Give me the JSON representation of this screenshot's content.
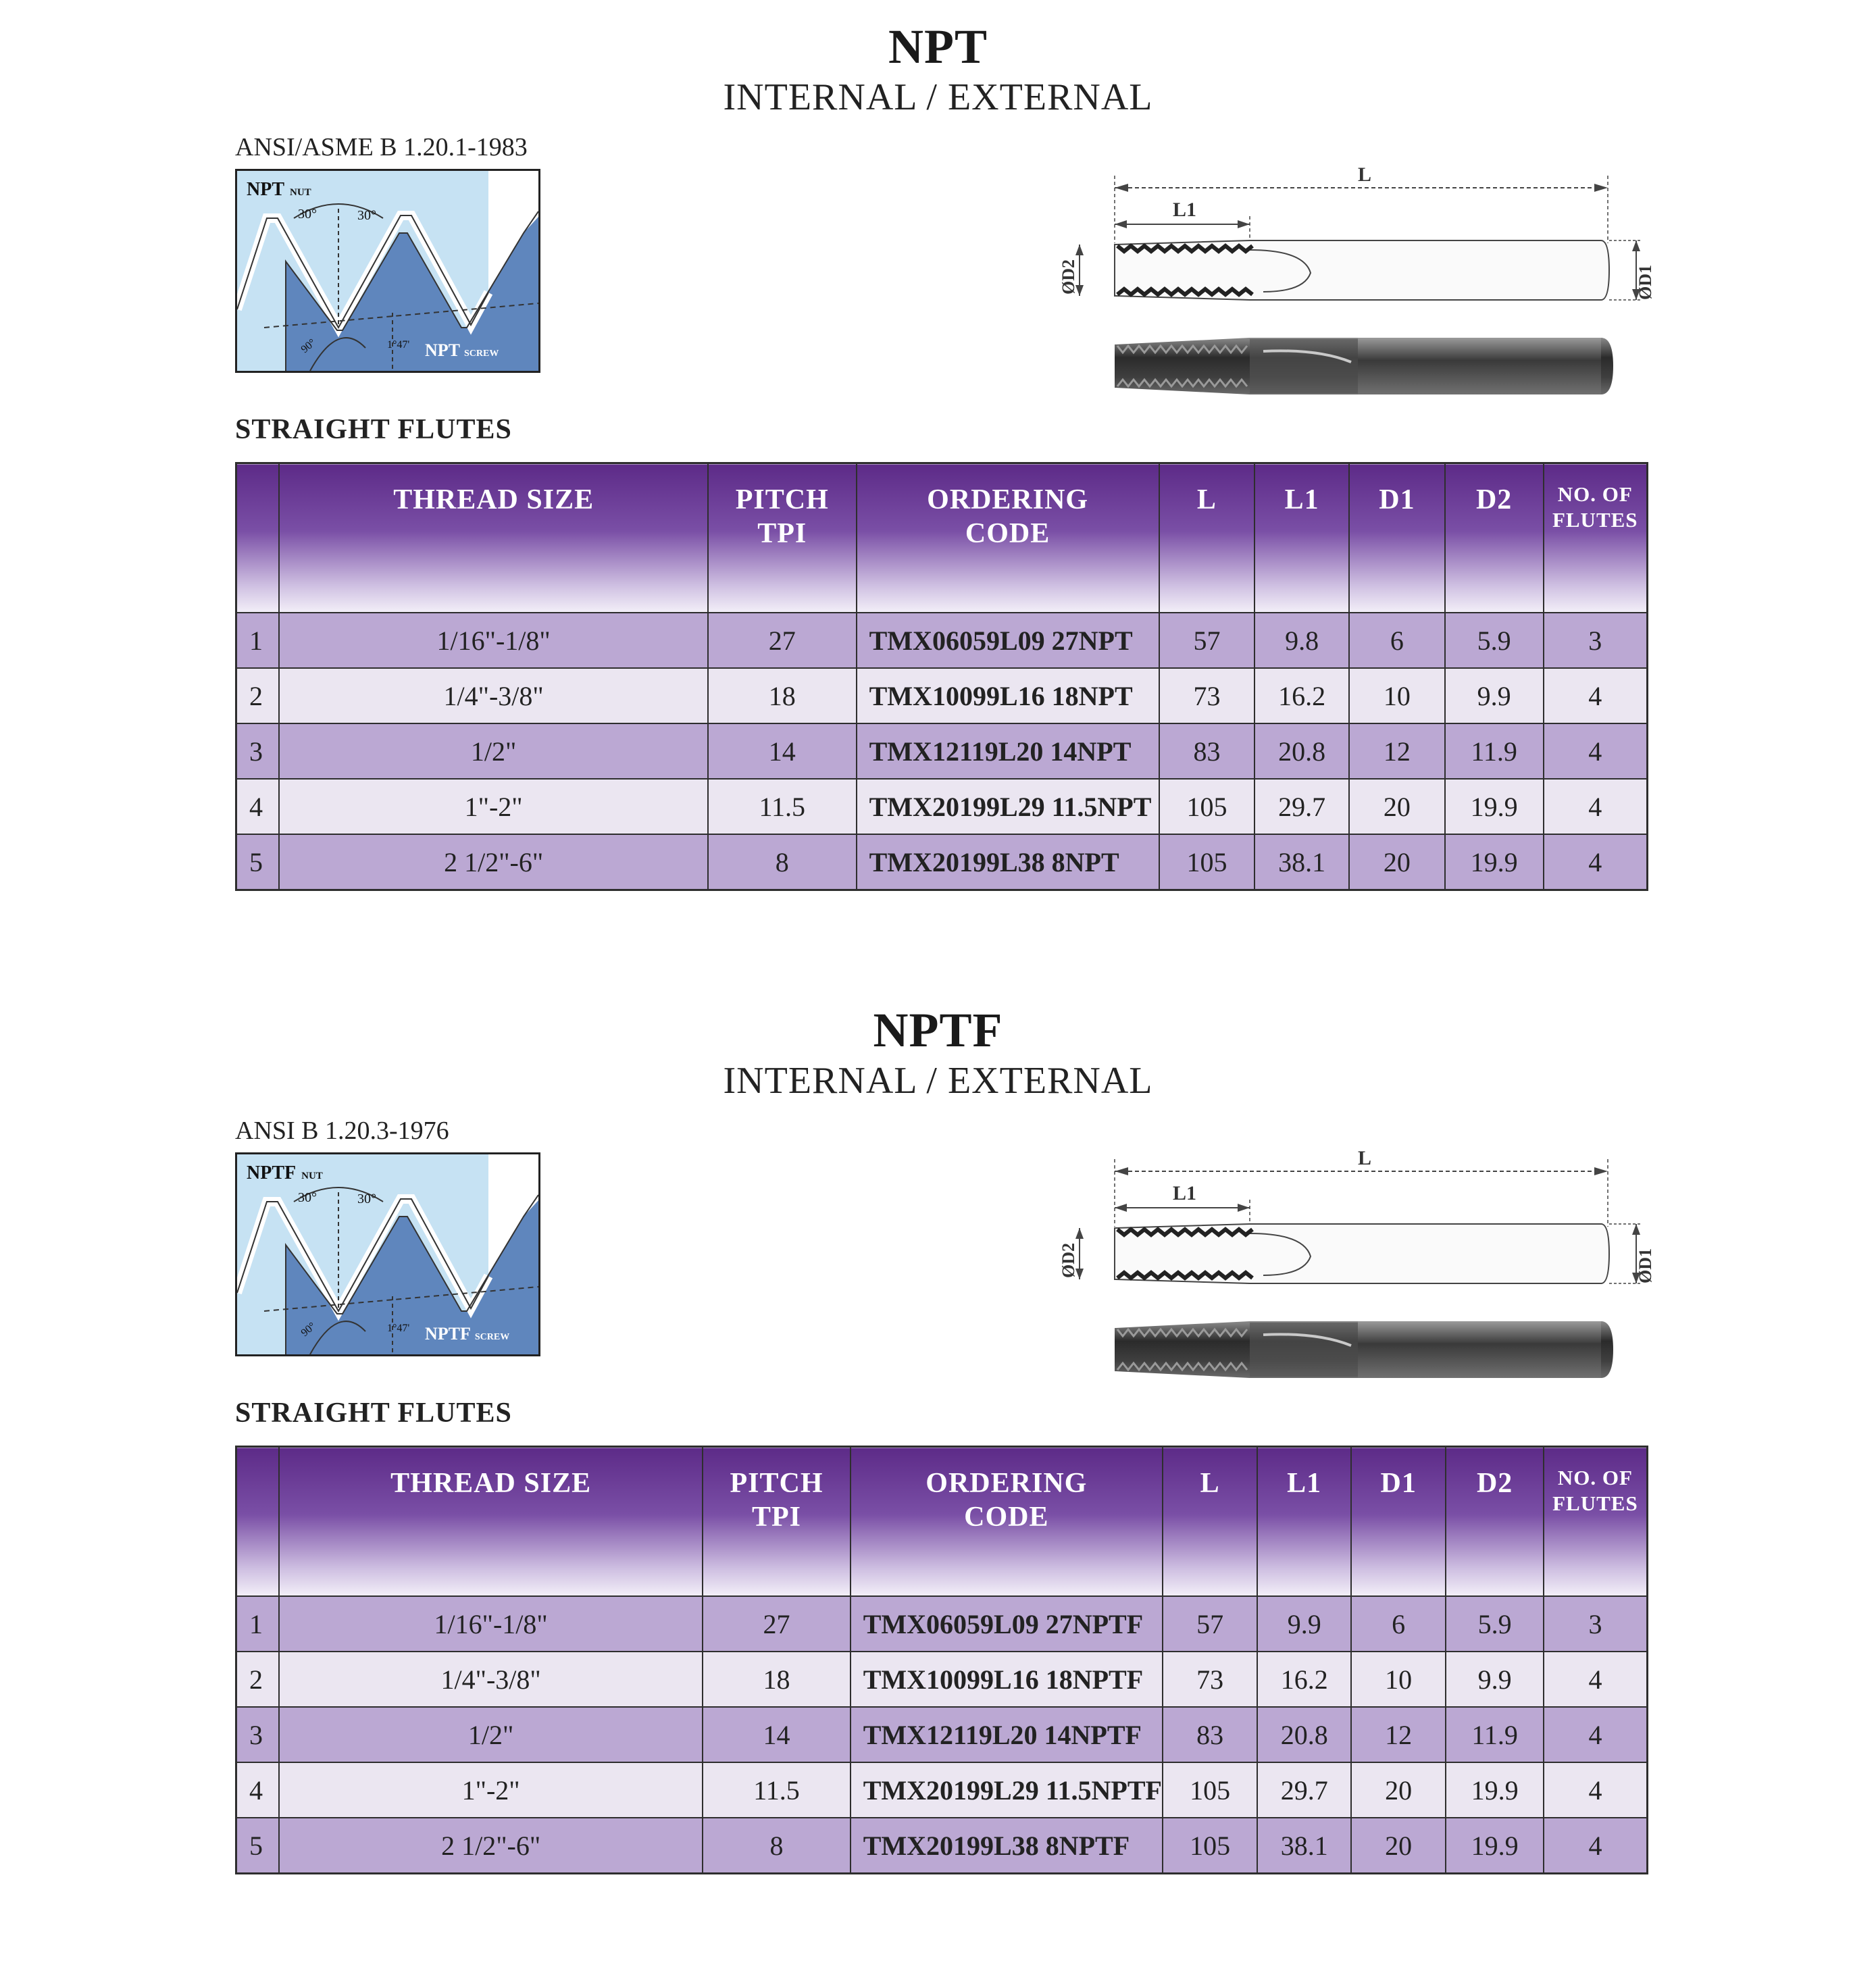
{
  "sections": [
    {
      "title": "NPT",
      "subtitle": "INTERNAL / EXTERNAL",
      "standard": "ANSI/ASME B 1.20.1-1983",
      "profile": {
        "nut_label": "NPT",
        "nut_sub": "NUT",
        "screw_label": "NPT",
        "screw_sub": "SCREW",
        "angle_left": "30°",
        "angle_right": "30°",
        "angle_90": "90°",
        "taper": "1°47'"
      },
      "dims": {
        "L": "L",
        "L1": "L1",
        "D1": "ØD1",
        "D2": "ØD2"
      },
      "flutes_heading": "STRAIGHT FLUTES",
      "headers": {
        "thread_size": "THREAD SIZE",
        "pitch_1": "PITCH",
        "pitch_2": "TPI",
        "ordering_1": "ORDERING",
        "ordering_2": "CODE",
        "L": "L",
        "L1": "L1",
        "D1": "D1",
        "D2": "D2",
        "flutes_1": "NO. OF",
        "flutes_2": "FLUTES"
      },
      "rows": [
        {
          "n": "1",
          "size": "1/16\"-1/8\"",
          "tpi": "27",
          "code": "TMX06059L09 27NPT",
          "L": "57",
          "L1": "9.8",
          "D1": "6",
          "D2": "5.9",
          "fl": "3"
        },
        {
          "n": "2",
          "size": "1/4\"-3/8\"",
          "tpi": "18",
          "code": "TMX10099L16 18NPT",
          "L": "73",
          "L1": "16.2",
          "D1": "10",
          "D2": "9.9",
          "fl": "4"
        },
        {
          "n": "3",
          "size": "1/2\"",
          "tpi": "14",
          "code": "TMX12119L20 14NPT",
          "L": "83",
          "L1": "20.8",
          "D1": "12",
          "D2": "11.9",
          "fl": "4"
        },
        {
          "n": "4",
          "size": "1\"-2\"",
          "tpi": "11.5",
          "code": "TMX20199L29 11.5NPT",
          "L": "105",
          "L1": "29.7",
          "D1": "20",
          "D2": "19.9",
          "fl": "4"
        },
        {
          "n": "5",
          "size": "2 1/2\"-6\"",
          "tpi": "8",
          "code": "TMX20199L38 8NPT",
          "L": "105",
          "L1": "38.1",
          "D1": "20",
          "D2": "19.9",
          "fl": "4"
        }
      ]
    },
    {
      "title": "NPTF",
      "subtitle": "INTERNAL / EXTERNAL",
      "standard": "ANSI B 1.20.3-1976",
      "profile": {
        "nut_label": "NPTF",
        "nut_sub": "NUT",
        "screw_label": "NPTF",
        "screw_sub": "SCREW",
        "angle_left": "30°",
        "angle_right": "30°",
        "angle_90": "90°",
        "taper": "1°47'"
      },
      "dims": {
        "L": "L",
        "L1": "L1",
        "D1": "ØD1",
        "D2": "ØD2"
      },
      "flutes_heading": "STRAIGHT FLUTES",
      "headers": {
        "thread_size": "THREAD SIZE",
        "pitch_1": "PITCH",
        "pitch_2": "TPI",
        "ordering_1": "ORDERING",
        "ordering_2": "CODE",
        "L": "L",
        "L1": "L1",
        "D1": "D1",
        "D2": "D2",
        "flutes_1": "NO. OF",
        "flutes_2": "FLUTES"
      },
      "rows": [
        {
          "n": "1",
          "size": "1/16\"-1/8\"",
          "tpi": "27",
          "code": "TMX06059L09 27NPTF",
          "L": "57",
          "L1": "9.9",
          "D1": "6",
          "D2": "5.9",
          "fl": "3"
        },
        {
          "n": "2",
          "size": "1/4\"-3/8\"",
          "tpi": "18",
          "code": "TMX10099L16 18NPTF",
          "L": "73",
          "L1": "16.2",
          "D1": "10",
          "D2": "9.9",
          "fl": "4"
        },
        {
          "n": "3",
          "size": "1/2\"",
          "tpi": "14",
          "code": "TMX12119L20 14NPTF",
          "L": "83",
          "L1": "20.8",
          "D1": "12",
          "D2": "11.9",
          "fl": "4"
        },
        {
          "n": "4",
          "size": "1\"-2\"",
          "tpi": "11.5",
          "code": "TMX20199L29 11.5NPTF",
          "L": "105",
          "L1": "29.7",
          "D1": "20",
          "D2": "19.9",
          "fl": "4"
        },
        {
          "n": "5",
          "size": "2 1/2\"-6\"",
          "tpi": "8",
          "code": "TMX20199L38 8NPTF",
          "L": "105",
          "L1": "38.1",
          "D1": "20",
          "D2": "19.9",
          "fl": "4"
        }
      ]
    }
  ]
}
